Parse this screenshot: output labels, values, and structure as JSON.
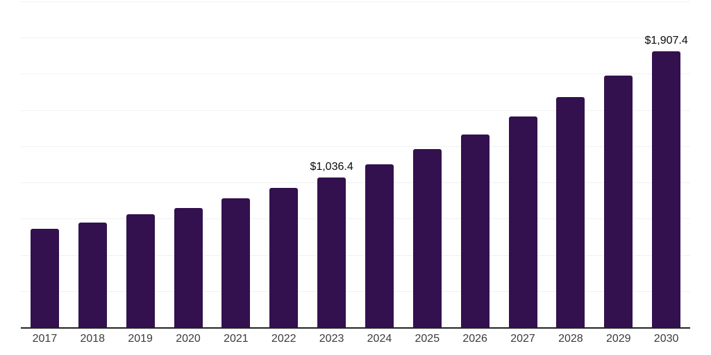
{
  "chart_data": {
    "type": "bar",
    "title": "",
    "xlabel": "",
    "ylabel": "",
    "categories": [
      "2017",
      "2018",
      "2019",
      "2020",
      "2021",
      "2022",
      "2023",
      "2024",
      "2025",
      "2026",
      "2027",
      "2028",
      "2029",
      "2030"
    ],
    "values": [
      678.0,
      725.4,
      782.4,
      825.2,
      889.8,
      961.0,
      1036.4,
      1127.2,
      1228.9,
      1333.4,
      1455.0,
      1589.9,
      1740.0,
      1907.4
    ],
    "data_labels": [
      {
        "category": "2023",
        "text": "$1,036.4"
      },
      {
        "category": "2030",
        "text": "$1,907.4"
      }
    ],
    "ylim": [
      0,
      2250
    ],
    "gridline_interval": 250,
    "grid": true,
    "legend": false,
    "colors": {
      "bar": "#32114e",
      "gridline": "#f1f1f3",
      "axis_line": "#222222",
      "tick_label": "#3a3a3a",
      "value_label": "#0a0a0a",
      "background": "#ffffff"
    }
  }
}
